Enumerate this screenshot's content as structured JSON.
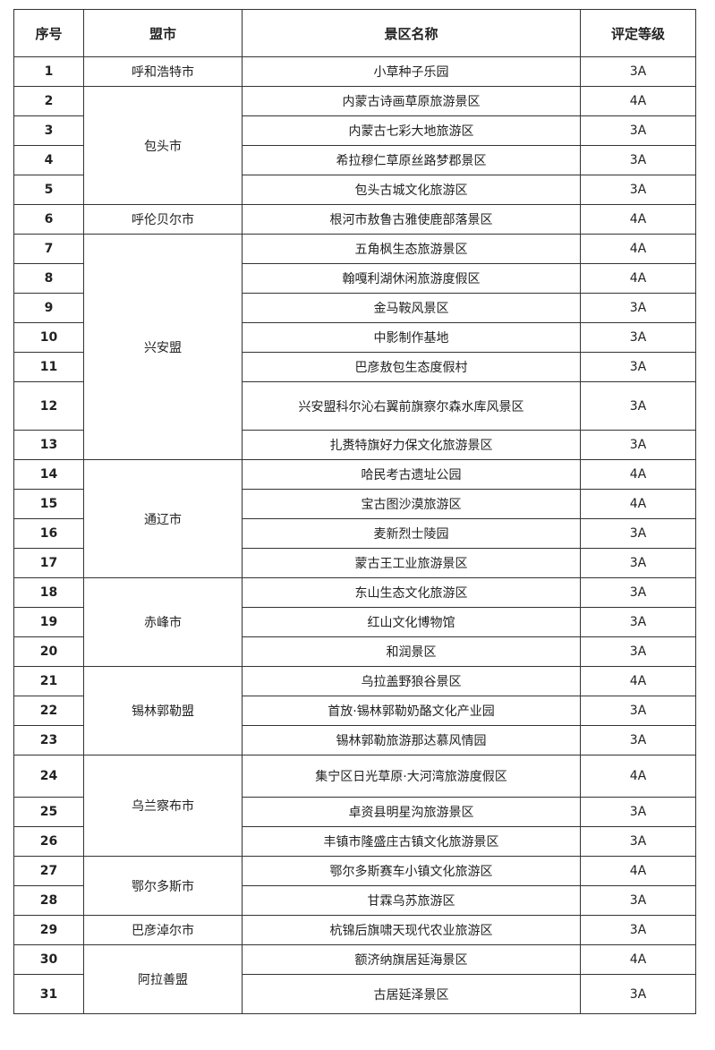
{
  "table": {
    "headers": [
      "序号",
      "盟市",
      "景区名称",
      "评定等级"
    ],
    "rows": [
      {
        "no": "1",
        "city": "呼和浩特市",
        "name": "小草种子乐园",
        "grade": "3A"
      },
      {
        "no": "2",
        "city": "包头市",
        "name": "内蒙古诗画草原旅游景区",
        "grade": "4A"
      },
      {
        "no": "3",
        "city": "包头市",
        "name": "内蒙古七彩大地旅游区",
        "grade": "3A"
      },
      {
        "no": "4",
        "city": "包头市",
        "name": "希拉穆仁草原丝路梦郡景区",
        "grade": "3A"
      },
      {
        "no": "5",
        "city": "包头市",
        "name": "包头古城文化旅游区",
        "grade": "3A"
      },
      {
        "no": "6",
        "city": "呼伦贝尔市",
        "name": "根河市敖鲁古雅使鹿部落景区",
        "grade": "4A"
      },
      {
        "no": "7",
        "city": "兴安盟",
        "name": "五角枫生态旅游景区",
        "grade": "4A"
      },
      {
        "no": "8",
        "city": "兴安盟",
        "name": "翰嘎利湖休闲旅游度假区",
        "grade": "4A"
      },
      {
        "no": "9",
        "city": "兴安盟",
        "name": "金马鞍风景区",
        "grade": "3A"
      },
      {
        "no": "10",
        "city": "兴安盟",
        "name": "中影制作基地",
        "grade": "3A"
      },
      {
        "no": "11",
        "city": "兴安盟",
        "name": "巴彦敖包生态度假村",
        "grade": "3A"
      },
      {
        "no": "12",
        "city": "兴安盟",
        "name": "兴安盟科尔沁右翼前旗察尔森水库风景区",
        "grade": "3A"
      },
      {
        "no": "13",
        "city": "兴安盟",
        "name": "扎赉特旗好力保文化旅游景区",
        "grade": "3A"
      },
      {
        "no": "14",
        "city": "通辽市",
        "name": "哈民考古遗址公园",
        "grade": "4A"
      },
      {
        "no": "15",
        "city": "通辽市",
        "name": "宝古图沙漠旅游区",
        "grade": "4A"
      },
      {
        "no": "16",
        "city": "通辽市",
        "name": "麦新烈士陵园",
        "grade": "3A"
      },
      {
        "no": "17",
        "city": "通辽市",
        "name": "蒙古王工业旅游景区",
        "grade": "3A"
      },
      {
        "no": "18",
        "city": "赤峰市",
        "name": "东山生态文化旅游区",
        "grade": "3A"
      },
      {
        "no": "19",
        "city": "赤峰市",
        "name": "红山文化博物馆",
        "grade": "3A"
      },
      {
        "no": "20",
        "city": "赤峰市",
        "name": "和润景区",
        "grade": "3A"
      },
      {
        "no": "21",
        "city": "锡林郭勒盟",
        "name": "乌拉盖野狼谷景区",
        "grade": "4A"
      },
      {
        "no": "22",
        "city": "锡林郭勒盟",
        "name": "首放·锡林郭勒奶酪文化产业园",
        "grade": "3A"
      },
      {
        "no": "23",
        "city": "锡林郭勒盟",
        "name": "锡林郭勒旅游那达慕风情园",
        "grade": "3A"
      },
      {
        "no": "24",
        "city": "乌兰察布市",
        "name": "集宁区日光草原·大河湾旅游度假区",
        "grade": "4A"
      },
      {
        "no": "25",
        "city": "乌兰察布市",
        "name": "卓资县明星沟旅游景区",
        "grade": "3A"
      },
      {
        "no": "26",
        "city": "乌兰察布市",
        "name": "丰镇市隆盛庄古镇文化旅游景区",
        "grade": "3A"
      },
      {
        "no": "27",
        "city": "鄂尔多斯市",
        "name": "鄂尔多斯赛车小镇文化旅游区",
        "grade": "4A"
      },
      {
        "no": "28",
        "city": "鄂尔多斯市",
        "name": "甘霖乌苏旅游区",
        "grade": "3A"
      },
      {
        "no": "29",
        "city": "巴彦淖尔市",
        "name": "杭锦后旗啸天现代农业旅游区",
        "grade": "3A"
      },
      {
        "no": "30",
        "city": "阿拉善盟",
        "name": "额济纳旗居延海景区",
        "grade": "4A"
      },
      {
        "no": "31",
        "city": "阿拉善盟",
        "name": "古居延泽景区",
        "grade": "3A"
      }
    ]
  }
}
